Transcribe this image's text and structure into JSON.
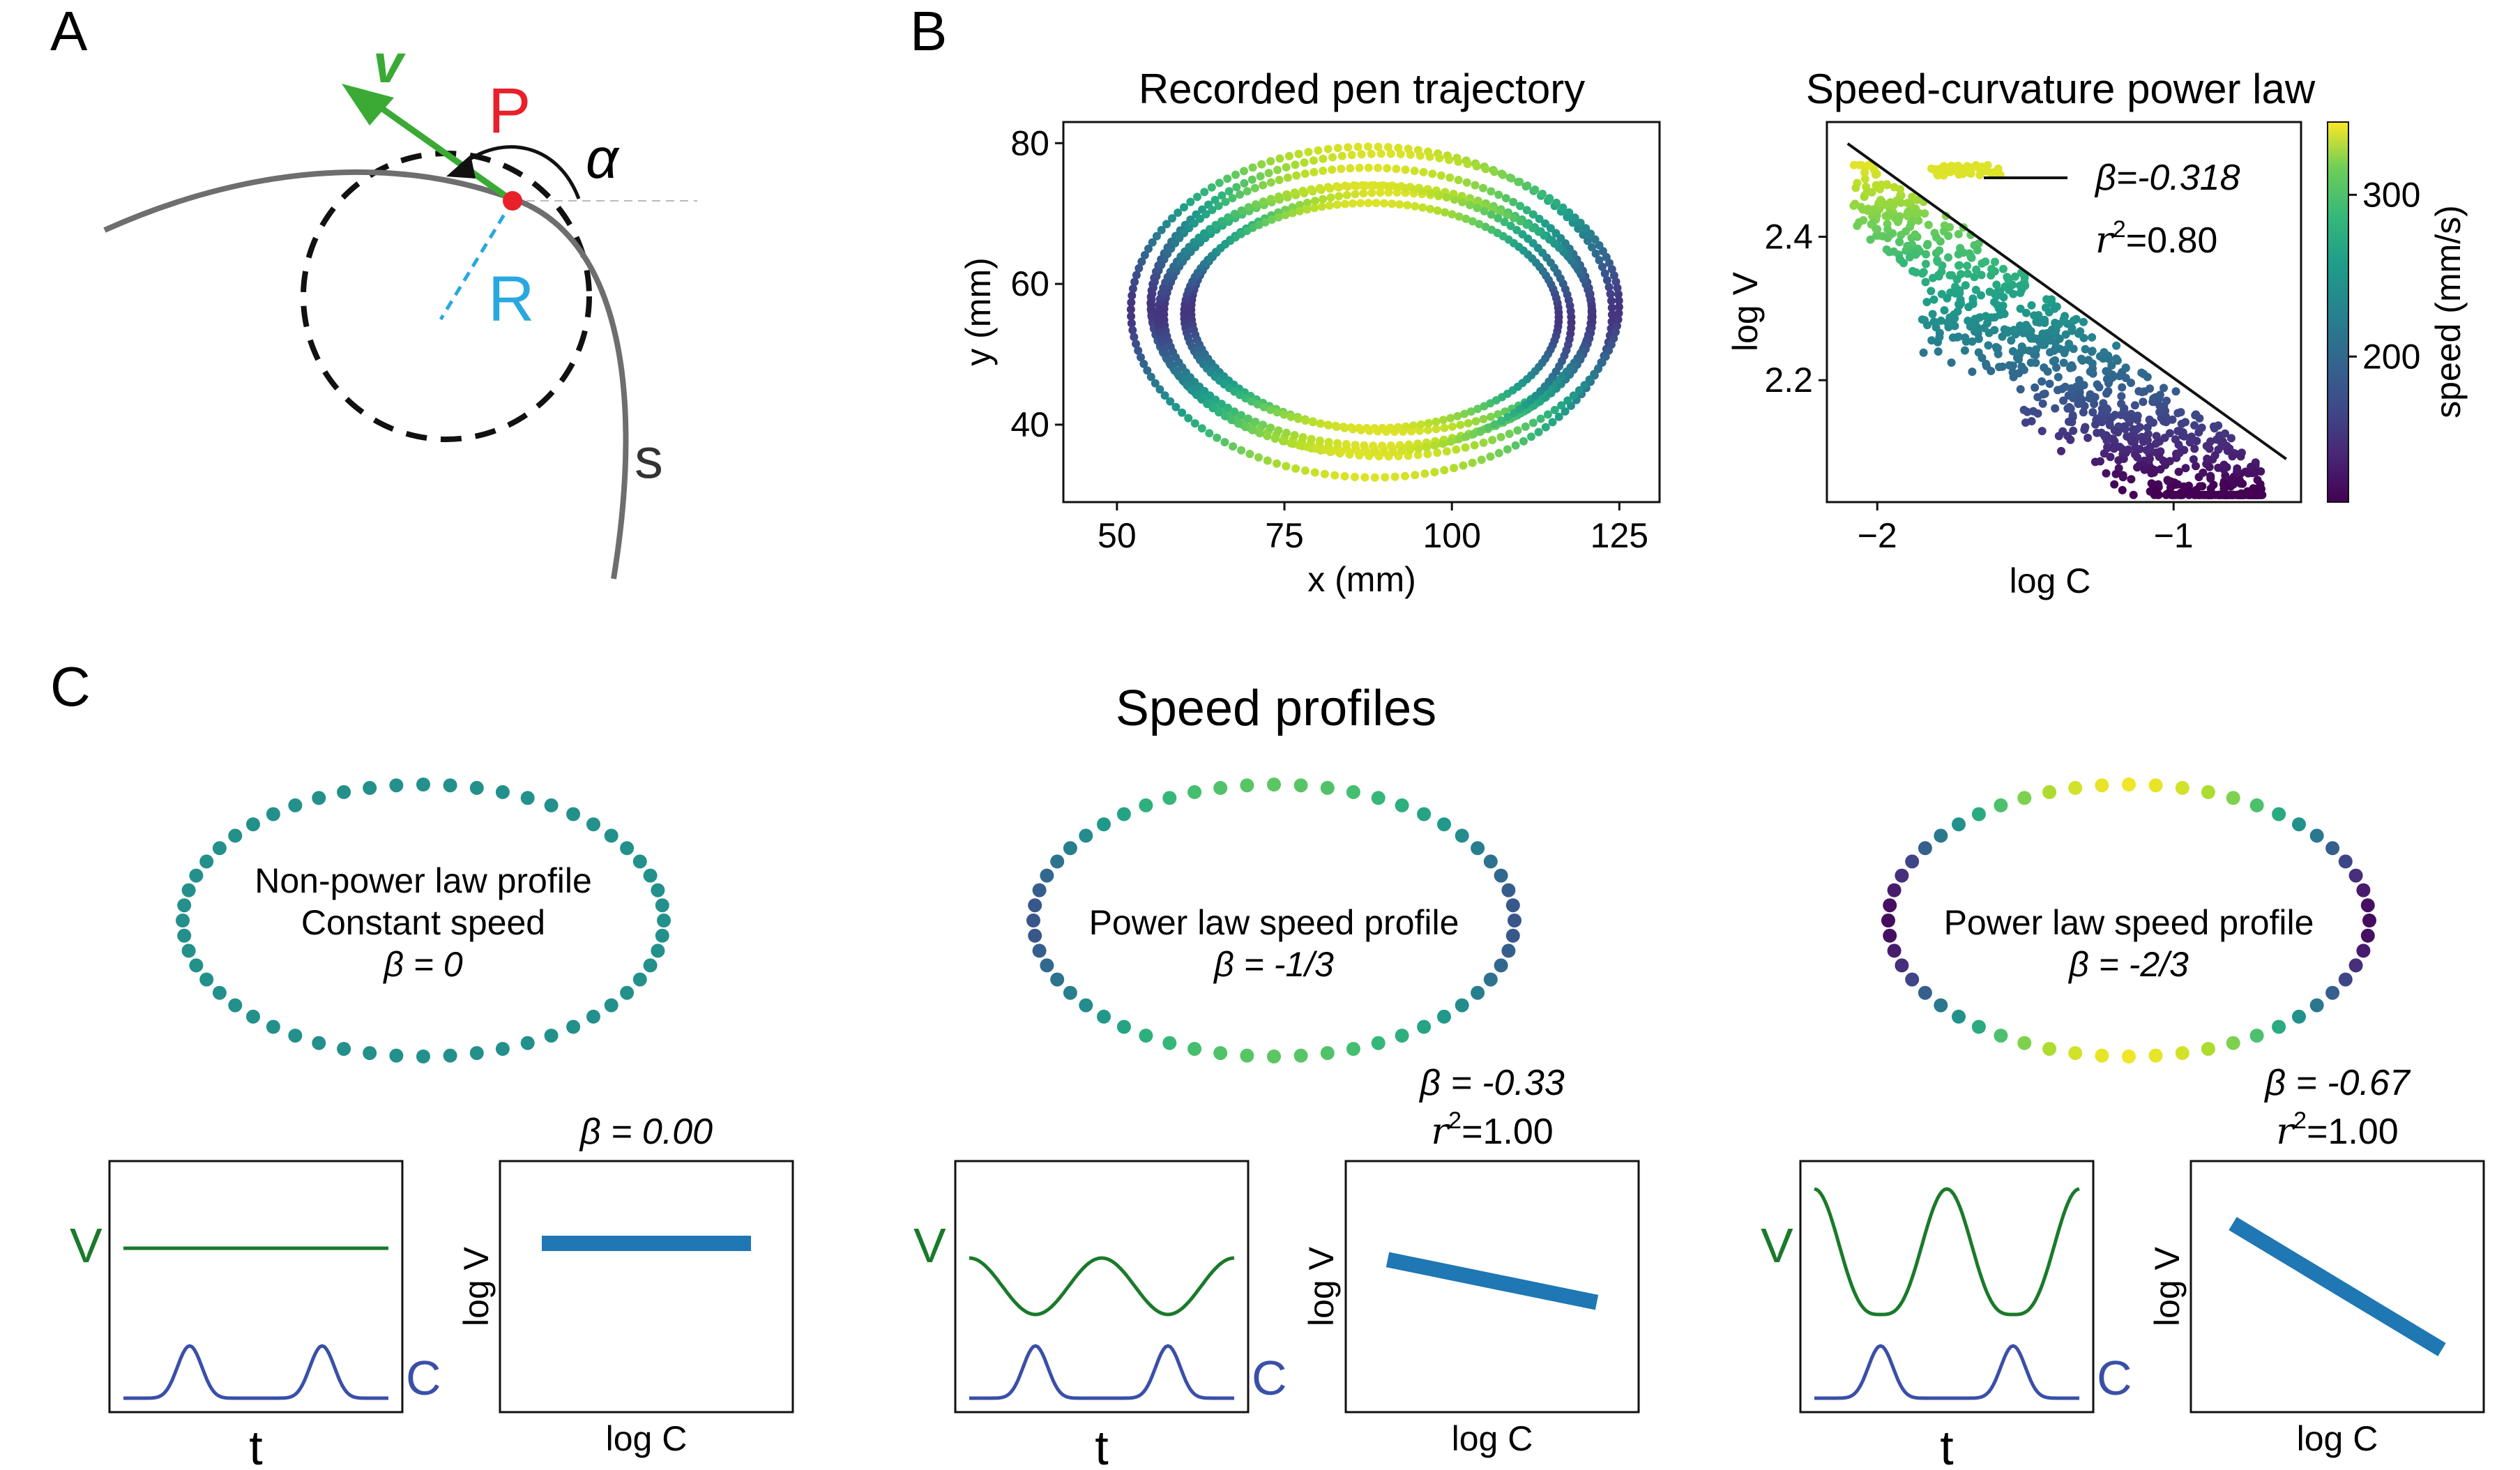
{
  "panels": {
    "a": {
      "letter": "A",
      "point_label": "P",
      "radius_label": "R",
      "velocity_label": "v",
      "angle_label": "α",
      "curve_label": "s",
      "colors": {
        "point": "#e8202a",
        "radius": "#29a8e0",
        "velocity": "#3aaa35",
        "curve": "#6e6e6e"
      }
    },
    "b": {
      "letter": "B"
    },
    "c": {
      "letter": "C",
      "title": "Speed profiles"
    }
  },
  "chart_data": [
    {
      "id": "trajectory",
      "type": "scatter",
      "title": "Recorded pen trajectory",
      "xlabel": "x (mm)",
      "ylabel": "y (mm)",
      "xlim": [
        42,
        131
      ],
      "ylim": [
        29,
        83
      ],
      "xticks": [
        50,
        75,
        100,
        125
      ],
      "yticks": [
        40,
        60,
        80
      ],
      "loops": [
        {
          "cx": 88,
          "cy": 56,
          "rx": 36,
          "ry": 23.5,
          "tilt": -4
        },
        {
          "cx": 90,
          "cy": 57,
          "rx": 35,
          "ry": 21.5,
          "tilt": -3
        },
        {
          "cx": 88,
          "cy": 56.5,
          "rx": 33,
          "ry": 20,
          "tilt": -5
        },
        {
          "cx": 89,
          "cy": 55.5,
          "rx": 32,
          "ry": 18.5,
          "tilt": -2
        },
        {
          "cx": 91,
          "cy": 56,
          "rx": 30,
          "ry": 17,
          "tilt": -4
        },
        {
          "cx": 87,
          "cy": 55,
          "rx": 31,
          "ry": 19,
          "tilt": -6
        },
        {
          "cx": 88,
          "cy": 55.5,
          "rx": 28,
          "ry": 16,
          "tilt": -3
        }
      ],
      "speed_range_mm_s": [
        110,
        345
      ]
    },
    {
      "id": "power_law",
      "type": "scatter",
      "title": "Speed-curvature power law",
      "xlabel": "log C",
      "ylabel": "log V",
      "xlim": [
        -2.17,
        -0.57
      ],
      "ylim": [
        2.03,
        2.56
      ],
      "xticks": [
        -2,
        -1
      ],
      "yticks": [
        2.2,
        2.4
      ],
      "fit_line": {
        "x": [
          -2.1,
          -0.62
        ],
        "y": [
          2.53,
          2.09
        ]
      },
      "annotation": {
        "beta_text": "β=-0.318",
        "r2_prefix": "r",
        "r2_exp": "2",
        "r2_value": "=0.80"
      },
      "colorbar": {
        "label": "speed (mm/s)",
        "ticks": [
          200,
          300
        ],
        "range": [
          110,
          345
        ]
      }
    },
    {
      "id": "profile_constant",
      "type": "scatter",
      "ellipse_text": [
        "Non-power law profile",
        "Constant speed",
        "β = 0"
      ],
      "beta": 0,
      "bottom_left": {
        "v_label": "V",
        "c_label": "C",
        "xlabel": "t"
      },
      "bottom_right": {
        "type": "line",
        "xlabel": "log C",
        "ylabel": "log V",
        "title": "β = 0.00",
        "r2": "",
        "slope": 0
      }
    },
    {
      "id": "profile_third",
      "type": "scatter",
      "ellipse_text": [
        "Power law speed profile",
        "β = -1/3"
      ],
      "beta": -0.3333,
      "bottom_left": {
        "v_label": "V",
        "c_label": "C",
        "xlabel": "t"
      },
      "bottom_right": {
        "type": "line",
        "xlabel": "log C",
        "ylabel": "log V",
        "title": "β = -0.33",
        "r2": "=1.00",
        "slope": -0.33
      }
    },
    {
      "id": "profile_twothird",
      "type": "scatter",
      "ellipse_text": [
        "Power law speed profile",
        "β = -2/3"
      ],
      "beta": -0.6667,
      "bottom_left": {
        "v_label": "V",
        "c_label": "C",
        "xlabel": "t"
      },
      "bottom_right": {
        "type": "line",
        "xlabel": "log C",
        "ylabel": "log V",
        "title": "β = -0.67",
        "r2": "=1.00",
        "slope": -0.67
      }
    }
  ]
}
